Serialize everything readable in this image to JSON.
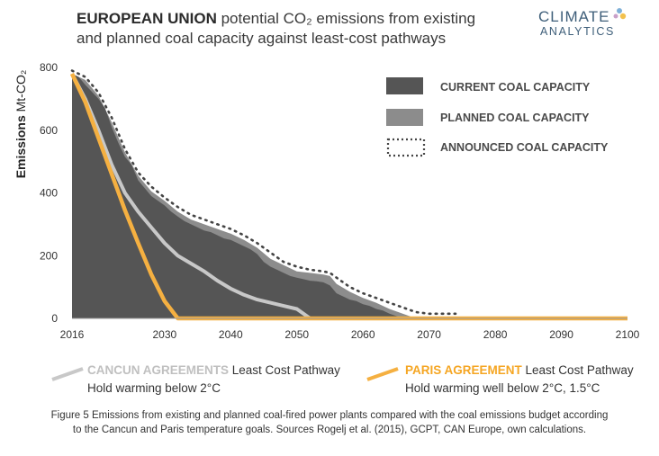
{
  "header": {
    "title_bold": "EUROPEAN UNION",
    "title_rest": "potential CO₂ emissions from existing",
    "title_line2": "and planned coal capacity against least-cost pathways"
  },
  "logo": {
    "line1": "CLIMATE",
    "line2": "ANALYTICS"
  },
  "ylabel": {
    "bold": "Emissions",
    "unit": "Mt-CO₂"
  },
  "legend": {
    "current": "CURRENT COAL CAPACITY",
    "planned": "PLANNED COAL CAPACITY",
    "announced": "ANNOUNCED COAL CAPACITY"
  },
  "bottom_legend": {
    "cancun_key": "CANCUN AGREEMENTS",
    "cancun_rest": "Least Cost Pathway",
    "cancun_line2": "Hold warming below 2°C",
    "paris_key": "PARIS AGREEMENT",
    "paris_rest": "Least Cost Pathway",
    "paris_line2": "Hold warming well below 2°C, 1.5°C"
  },
  "caption": {
    "line1": "Figure 5 Emissions from existing and planned coal-fired power plants compared with the coal emissions budget according",
    "line2": "to the Cancun and Paris temperature goals. Sources Rogelj et al. (2015), GCPT, CAN Europe, own calculations."
  },
  "colors": {
    "current": "#555555",
    "planned": "#8c8c8c",
    "announced": "#444444",
    "cancun": "#c8c8c8",
    "paris": "#f5b041"
  },
  "chart_data": {
    "type": "area",
    "xlabel": "",
    "ylabel": "Emissions Mt-CO₂",
    "xlim": [
      2016,
      2100
    ],
    "ylim": [
      0,
      800
    ],
    "xticks": [
      2016,
      2030,
      2040,
      2050,
      2060,
      2070,
      2080,
      2090,
      2100
    ],
    "yticks": [
      0,
      200,
      400,
      600,
      800
    ],
    "series": [
      {
        "name": "CURRENT COAL CAPACITY",
        "kind": "area",
        "points": [
          [
            2016,
            780
          ],
          [
            2017,
            770
          ],
          [
            2018,
            745
          ],
          [
            2020,
            700
          ],
          [
            2021,
            670
          ],
          [
            2022,
            610
          ],
          [
            2023,
            560
          ],
          [
            2024,
            515
          ],
          [
            2025,
            490
          ],
          [
            2026,
            440
          ],
          [
            2027,
            415
          ],
          [
            2028,
            390
          ],
          [
            2029,
            375
          ],
          [
            2030,
            360
          ],
          [
            2031,
            340
          ],
          [
            2032,
            325
          ],
          [
            2033,
            310
          ],
          [
            2034,
            300
          ],
          [
            2035,
            290
          ],
          [
            2036,
            280
          ],
          [
            2037,
            275
          ],
          [
            2038,
            265
          ],
          [
            2039,
            255
          ],
          [
            2040,
            250
          ],
          [
            2041,
            240
          ],
          [
            2042,
            230
          ],
          [
            2043,
            220
          ],
          [
            2044,
            205
          ],
          [
            2045,
            180
          ],
          [
            2046,
            165
          ],
          [
            2047,
            155
          ],
          [
            2048,
            145
          ],
          [
            2049,
            135
          ],
          [
            2050,
            130
          ],
          [
            2051,
            125
          ],
          [
            2052,
            120
          ],
          [
            2053,
            118
          ],
          [
            2054,
            115
          ],
          [
            2055,
            105
          ],
          [
            2056,
            80
          ],
          [
            2057,
            70
          ],
          [
            2058,
            60
          ],
          [
            2059,
            55
          ],
          [
            2060,
            45
          ],
          [
            2061,
            40
          ],
          [
            2062,
            30
          ],
          [
            2063,
            25
          ],
          [
            2064,
            15
          ],
          [
            2065,
            8
          ],
          [
            2066,
            0
          ]
        ]
      },
      {
        "name": "PLANNED COAL CAPACITY",
        "kind": "area",
        "points": [
          [
            2016,
            780
          ],
          [
            2018,
            760
          ],
          [
            2020,
            710
          ],
          [
            2022,
            625
          ],
          [
            2024,
            530
          ],
          [
            2026,
            455
          ],
          [
            2028,
            405
          ],
          [
            2030,
            375
          ],
          [
            2032,
            340
          ],
          [
            2034,
            315
          ],
          [
            2036,
            300
          ],
          [
            2038,
            285
          ],
          [
            2040,
            270
          ],
          [
            2042,
            250
          ],
          [
            2044,
            225
          ],
          [
            2046,
            190
          ],
          [
            2048,
            170
          ],
          [
            2050,
            150
          ],
          [
            2052,
            145
          ],
          [
            2054,
            140
          ],
          [
            2055,
            135
          ],
          [
            2056,
            110
          ],
          [
            2058,
            85
          ],
          [
            2060,
            65
          ],
          [
            2062,
            50
          ],
          [
            2064,
            30
          ],
          [
            2066,
            15
          ],
          [
            2068,
            0
          ]
        ]
      },
      {
        "name": "ANNOUNCED COAL CAPACITY",
        "kind": "dotted-line",
        "points": [
          [
            2016,
            790
          ],
          [
            2018,
            770
          ],
          [
            2020,
            720
          ],
          [
            2022,
            640
          ],
          [
            2024,
            540
          ],
          [
            2026,
            465
          ],
          [
            2028,
            420
          ],
          [
            2030,
            385
          ],
          [
            2032,
            355
          ],
          [
            2034,
            330
          ],
          [
            2036,
            315
          ],
          [
            2038,
            300
          ],
          [
            2040,
            285
          ],
          [
            2042,
            265
          ],
          [
            2044,
            240
          ],
          [
            2046,
            210
          ],
          [
            2048,
            180
          ],
          [
            2050,
            165
          ],
          [
            2052,
            155
          ],
          [
            2054,
            150
          ],
          [
            2055,
            145
          ],
          [
            2056,
            130
          ],
          [
            2058,
            100
          ],
          [
            2060,
            80
          ],
          [
            2062,
            65
          ],
          [
            2064,
            50
          ],
          [
            2066,
            35
          ],
          [
            2068,
            20
          ],
          [
            2070,
            15
          ],
          [
            2074,
            15
          ]
        ]
      },
      {
        "name": "CANCUN AGREEMENTS Least Cost Pathway",
        "kind": "line",
        "points": [
          [
            2016,
            780
          ],
          [
            2018,
            700
          ],
          [
            2020,
            600
          ],
          [
            2022,
            490
          ],
          [
            2024,
            400
          ],
          [
            2026,
            340
          ],
          [
            2028,
            290
          ],
          [
            2030,
            240
          ],
          [
            2032,
            200
          ],
          [
            2034,
            175
          ],
          [
            2036,
            150
          ],
          [
            2038,
            120
          ],
          [
            2040,
            95
          ],
          [
            2042,
            75
          ],
          [
            2044,
            60
          ],
          [
            2046,
            50
          ],
          [
            2048,
            40
          ],
          [
            2050,
            30
          ],
          [
            2051,
            15
          ],
          [
            2052,
            0
          ],
          [
            2100,
            0
          ]
        ]
      },
      {
        "name": "PARIS AGREEMENT Least Cost Pathway",
        "kind": "line",
        "points": [
          [
            2016,
            780
          ],
          [
            2018,
            690
          ],
          [
            2020,
            575
          ],
          [
            2022,
            460
          ],
          [
            2024,
            345
          ],
          [
            2026,
            240
          ],
          [
            2028,
            140
          ],
          [
            2030,
            55
          ],
          [
            2032,
            0
          ],
          [
            2100,
            0
          ]
        ]
      }
    ]
  }
}
